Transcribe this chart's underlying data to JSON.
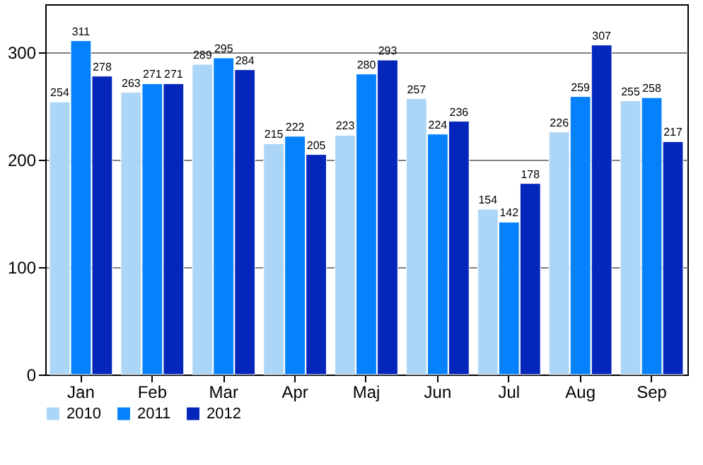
{
  "chart_data": {
    "type": "bar",
    "categories": [
      "Jan",
      "Feb",
      "Mar",
      "Apr",
      "Maj",
      "Jun",
      "Jul",
      "Aug",
      "Sep"
    ],
    "series": [
      {
        "name": "2010",
        "color": "#acd6f8",
        "values": [
          254,
          263,
          289,
          215,
          223,
          257,
          154,
          226,
          255
        ]
      },
      {
        "name": "2011",
        "color": "#0582fb",
        "values": [
          311,
          271,
          295,
          222,
          280,
          224,
          142,
          259,
          258
        ]
      },
      {
        "name": "2012",
        "color": "#0526bb",
        "values": [
          278,
          271,
          284,
          205,
          293,
          236,
          178,
          307,
          217
        ]
      }
    ],
    "ylim": [
      0,
      345
    ],
    "yticks": [
      0,
      100,
      200,
      300
    ],
    "grid": "y",
    "legend": "bottom",
    "data_labels": true
  }
}
